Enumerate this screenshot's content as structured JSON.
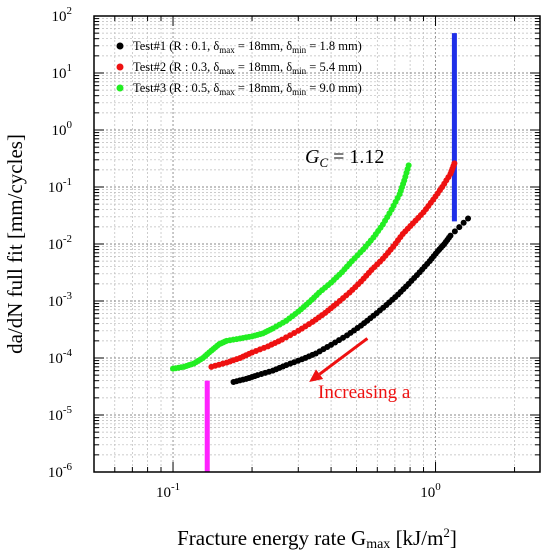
{
  "chart_data": {
    "type": "scatter",
    "title": "",
    "xlabel": "Fracture energy rate G",
    "xlabel_sub": "max",
    "xlabel_unit_pre": " [kJ/m",
    "xlabel_unit_exp": "2",
    "xlabel_unit_post": "]",
    "ylabel": "da/dN full fit [mm/cycles]",
    "x_scale": "log",
    "y_scale": "log",
    "xlim": [
      0.05,
      2.5
    ],
    "ylim": [
      1e-06,
      100
    ],
    "grid": true,
    "legend_position": "top-left",
    "x_ticks": [
      {
        "value": 0.1,
        "label": "10",
        "exp": "-1"
      },
      {
        "value": 1,
        "label": "10",
        "exp": "0"
      }
    ],
    "y_ticks": [
      {
        "value": 1e-06,
        "label": "10",
        "exp": "-6"
      },
      {
        "value": 1e-05,
        "label": "10",
        "exp": "-5"
      },
      {
        "value": 0.0001,
        "label": "10",
        "exp": "-4"
      },
      {
        "value": 0.001,
        "label": "10",
        "exp": "-3"
      },
      {
        "value": 0.01,
        "label": "10",
        "exp": "-2"
      },
      {
        "value": 0.1,
        "label": "10",
        "exp": "-1"
      },
      {
        "value": 1,
        "label": "10",
        "exp": "0"
      },
      {
        "value": 10,
        "label": "10",
        "exp": "1"
      },
      {
        "value": 100,
        "label": "10",
        "exp": "2"
      }
    ],
    "series": [
      {
        "name": "Test#1",
        "legend": {
          "pre": "Test#1 (R : 0.1, δ",
          "s1": "max",
          "m1": " = 18mm, δ",
          "s2": "min",
          "m2": " = 1.8 mm)"
        },
        "color": "#000000",
        "points": [
          [
            0.17,
            3.8e-05
          ],
          [
            0.19,
            4.3e-05
          ],
          [
            0.21,
            5e-05
          ],
          [
            0.24,
            6e-05
          ],
          [
            0.27,
            7.5e-05
          ],
          [
            0.31,
            9.5e-05
          ],
          [
            0.35,
            0.00012
          ],
          [
            0.4,
            0.00017
          ],
          [
            0.46,
            0.00025
          ],
          [
            0.52,
            0.00037
          ],
          [
            0.58,
            0.00055
          ],
          [
            0.65,
            0.00085
          ],
          [
            0.72,
            0.0013
          ],
          [
            0.79,
            0.002
          ],
          [
            0.87,
            0.0032
          ],
          [
            0.95,
            0.005
          ],
          [
            1.02,
            0.0075
          ],
          [
            1.08,
            0.01
          ],
          [
            1.14,
            0.014
          ],
          [
            1.33,
            0.028
          ]
        ]
      },
      {
        "name": "Test#2",
        "legend": {
          "pre": "Test#2 (R : 0.3, δ",
          "s1": "max",
          "m1": " = 18mm, δ",
          "s2": "min",
          "m2": " = 5.4 mm)"
        },
        "color": "#ee1111",
        "points": [
          [
            0.14,
            7e-05
          ],
          [
            0.16,
            8.3e-05
          ],
          [
            0.18,
            0.0001
          ],
          [
            0.2,
            0.000125
          ],
          [
            0.23,
            0.00016
          ],
          [
            0.26,
            0.00021
          ],
          [
            0.3,
            0.0003
          ],
          [
            0.34,
            0.00043
          ],
          [
            0.38,
            0.00062
          ],
          [
            0.42,
            0.0009
          ],
          [
            0.47,
            0.0014
          ],
          [
            0.52,
            0.0022
          ],
          [
            0.57,
            0.0035
          ],
          [
            0.63,
            0.0055
          ],
          [
            0.69,
            0.009
          ],
          [
            0.75,
            0.015
          ],
          [
            0.82,
            0.023
          ],
          [
            0.9,
            0.036
          ],
          [
            0.98,
            0.06
          ],
          [
            1.06,
            0.1
          ],
          [
            1.14,
            0.17
          ],
          [
            1.18,
            0.26
          ]
        ]
      },
      {
        "name": "Test#3",
        "legend": {
          "pre": "Test#3 (R : 0.5, δ",
          "s1": "max",
          "m1": " = 18mm, δ",
          "s2": "min",
          "m2": " = 9.0 mm)"
        },
        "color": "#22ee22",
        "points": [
          [
            0.1,
            6.5e-05
          ],
          [
            0.11,
            7e-05
          ],
          [
            0.12,
            8e-05
          ],
          [
            0.13,
            0.0001
          ],
          [
            0.14,
            0.000135
          ],
          [
            0.15,
            0.000175
          ],
          [
            0.16,
            0.0002
          ],
          [
            0.18,
            0.00022
          ],
          [
            0.2,
            0.00024
          ],
          [
            0.22,
            0.00027
          ],
          [
            0.24,
            0.00033
          ],
          [
            0.27,
            0.00045
          ],
          [
            0.3,
            0.00065
          ],
          [
            0.33,
            0.00095
          ],
          [
            0.36,
            0.0014
          ],
          [
            0.4,
            0.0021
          ],
          [
            0.44,
            0.0032
          ],
          [
            0.48,
            0.005
          ],
          [
            0.53,
            0.008
          ],
          [
            0.58,
            0.013
          ],
          [
            0.63,
            0.022
          ],
          [
            0.68,
            0.04
          ],
          [
            0.73,
            0.075
          ],
          [
            0.76,
            0.13
          ],
          [
            0.79,
            0.24
          ]
        ]
      }
    ],
    "markers": [
      {
        "name": "blue-vertical-line",
        "color": "#1f2fe8",
        "x": 1.18,
        "y_from": 0.025,
        "y_to": 50
      },
      {
        "name": "magenta-vertical-line",
        "color": "#ff22ff",
        "x": 0.135,
        "y_from": 1e-06,
        "y_to": 4e-05
      }
    ],
    "annotations": {
      "gc_symbol": "G",
      "gc_sub": "C",
      "gc_eq": " = 1.12",
      "arrow_text": "Increasing a",
      "arrow_color": "#ee1111",
      "arrow_from": [
        0.55,
        0.00022
      ],
      "arrow_to": [
        0.33,
        3.8e-05
      ]
    }
  }
}
